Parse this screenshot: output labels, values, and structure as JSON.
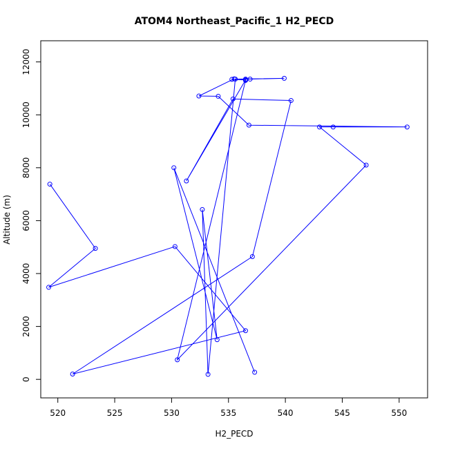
{
  "chart_data": {
    "type": "line",
    "title": "ATOM4 Northeast_Pacific_1 H2_PECD",
    "xlabel": "H2_PECD",
    "ylabel": "Altitude (m)",
    "xlim": [
      518.5,
      552.5
    ],
    "ylim": [
      -700,
      12800
    ],
    "x_ticks": [
      520,
      525,
      530,
      535,
      540,
      545,
      550
    ],
    "y_ticks": [
      0,
      2000,
      4000,
      6000,
      8000,
      10000,
      12000
    ],
    "series": [
      {
        "color": "#0000ff",
        "marker": "open-circle",
        "points": [
          {
            "x": 519.3,
            "y": 7380
          },
          {
            "x": 523.3,
            "y": 4950
          },
          {
            "x": 519.2,
            "y": 3480
          },
          {
            "x": 530.3,
            "y": 5020
          },
          {
            "x": 536.5,
            "y": 1840
          },
          {
            "x": 521.3,
            "y": 200
          },
          {
            "x": 537.1,
            "y": 4640
          },
          {
            "x": 540.5,
            "y": 10540
          },
          {
            "x": 535.4,
            "y": 10600
          },
          {
            "x": 531.3,
            "y": 7500
          },
          {
            "x": 536.5,
            "y": 11320
          },
          {
            "x": 535.3,
            "y": 11340
          },
          {
            "x": 535.5,
            "y": 11360
          },
          {
            "x": 532.4,
            "y": 10710
          },
          {
            "x": 534.1,
            "y": 10700
          },
          {
            "x": 536.8,
            "y": 9610
          },
          {
            "x": 550.7,
            "y": 9540
          },
          {
            "x": 544.2,
            "y": 9540
          },
          {
            "x": 543.0,
            "y": 9540
          },
          {
            "x": 547.1,
            "y": 8100
          },
          {
            "x": 530.5,
            "y": 740
          },
          {
            "x": 536.5,
            "y": 11300
          },
          {
            "x": 536.5,
            "y": 11350
          },
          {
            "x": 536.9,
            "y": 11350
          },
          {
            "x": 539.9,
            "y": 11380
          },
          {
            "x": 535.6,
            "y": 11350
          },
          {
            "x": 533.2,
            "y": 190
          },
          {
            "x": 532.7,
            "y": 6420
          },
          {
            "x": 534.0,
            "y": 1500
          },
          {
            "x": 530.2,
            "y": 8000
          },
          {
            "x": 537.3,
            "y": 270
          }
        ]
      }
    ]
  }
}
